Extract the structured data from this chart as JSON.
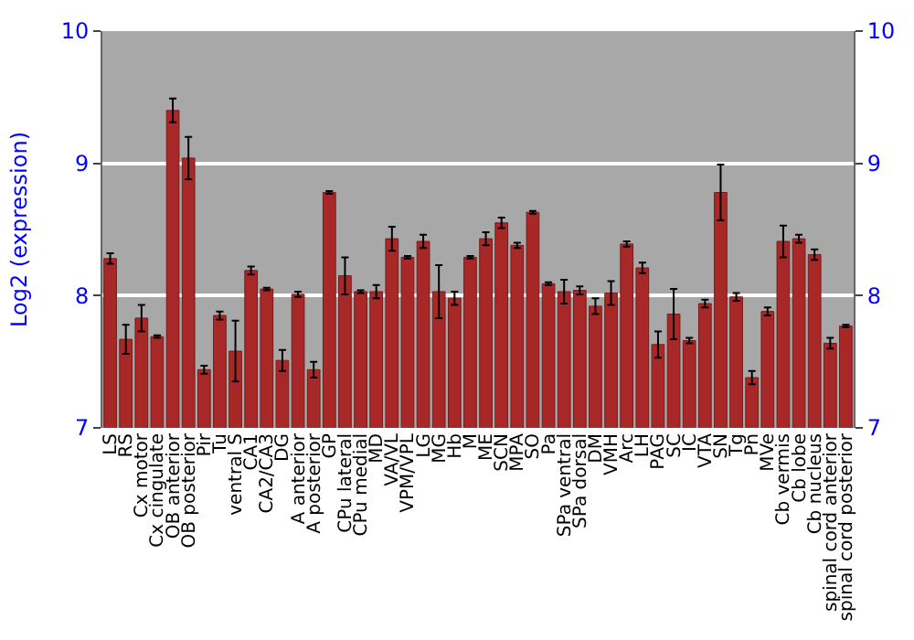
{
  "chart_data": {
    "type": "bar",
    "ylabel": "Log2 (expression)",
    "categories": [
      "LS",
      "RS",
      "Cx motor",
      "Cx cingulate",
      "OB anterior",
      "OB posterior",
      "Pir",
      "Tu",
      "ventral S",
      "CA1",
      "CA2/CA3",
      "DG",
      "A anterior",
      "A posterior",
      "GP",
      "CPu lateral",
      "CPu medial",
      "MD",
      "VA/VL",
      "VPM/VPL",
      "LG",
      "MG",
      "Hb",
      "M",
      "ME",
      "SCN",
      "MPA",
      "SO",
      "Pa",
      "SPa ventral",
      "SPa dorsal",
      "DM",
      "VMH",
      "Arc",
      "LH",
      "PAG",
      "SC",
      "IC",
      "VTA",
      "SN",
      "Tg",
      "Pn",
      "MVe",
      "Cb vermis",
      "Cb lobe",
      "Cb nucleus",
      "spinal cord anterior",
      "spinal cord posterior"
    ],
    "values": [
      8.28,
      7.67,
      7.83,
      7.69,
      9.4,
      9.04,
      7.44,
      7.85,
      7.58,
      8.19,
      8.05,
      7.51,
      8.01,
      7.44,
      8.78,
      8.15,
      8.03,
      8.03,
      8.43,
      8.29,
      8.41,
      8.03,
      7.98,
      8.29,
      8.43,
      8.55,
      8.38,
      8.63,
      8.09,
      8.03,
      8.04,
      7.92,
      8.02,
      8.39,
      8.21,
      7.63,
      7.86,
      7.66,
      7.94,
      8.78,
      7.99,
      7.38,
      7.88,
      8.41,
      8.43,
      8.31,
      7.64,
      7.77
    ],
    "errors": [
      0.04,
      0.11,
      0.1,
      0.01,
      0.09,
      0.16,
      0.03,
      0.03,
      0.23,
      0.03,
      0.01,
      0.08,
      0.02,
      0.06,
      0.01,
      0.14,
      0.01,
      0.05,
      0.09,
      0.01,
      0.05,
      0.2,
      0.05,
      0.01,
      0.05,
      0.04,
      0.02,
      0.01,
      0.01,
      0.09,
      0.03,
      0.06,
      0.09,
      0.02,
      0.04,
      0.1,
      0.19,
      0.02,
      0.03,
      0.21,
      0.03,
      0.05,
      0.03,
      0.12,
      0.03,
      0.04,
      0.04,
      0.01
    ],
    "color": "#a82828",
    "ylim": [
      7,
      10
    ],
    "yticks": [
      7,
      8,
      9,
      10
    ],
    "y2lim": [
      7,
      10
    ],
    "y2ticks": [
      7,
      8,
      9,
      10
    ],
    "grid": "y"
  }
}
